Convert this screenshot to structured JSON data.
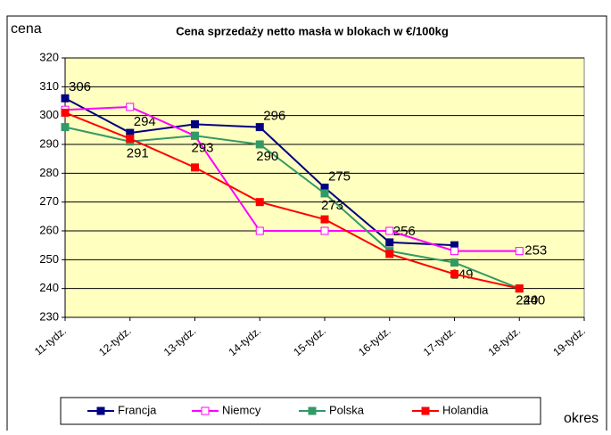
{
  "chart_data": {
    "type": "line",
    "title": "Cena sprzedaży netto masła w blokach w €/100kg",
    "y_label": "cena",
    "x_label": "okres",
    "categories": [
      "11-tydz.",
      "12-tydz.",
      "13-tydz.",
      "14-tydz.",
      "15-tydz.",
      "16-tydz.",
      "17-tydz.",
      "18-tydz.",
      "19-tydz."
    ],
    "ylim": [
      230,
      320
    ],
    "yticks": [
      230,
      240,
      250,
      260,
      270,
      280,
      290,
      300,
      310,
      320
    ],
    "grid": true,
    "legend": "bottom",
    "series": [
      {
        "name": "Francja",
        "color": "#000080",
        "values": [
          306,
          294,
          297,
          296,
          275,
          256,
          255,
          null,
          null
        ],
        "labeled": [
          0,
          1,
          3,
          4,
          5
        ]
      },
      {
        "name": "Niemcy",
        "color": "#ff00ff",
        "values": [
          302,
          303,
          293,
          260,
          260,
          260,
          253,
          253,
          null
        ],
        "labeled": [
          7
        ]
      },
      {
        "name": "Polska",
        "color": "#339966",
        "values": [
          296,
          291,
          293,
          290,
          273,
          253,
          249,
          240,
          null
        ],
        "labeled": [
          1,
          2,
          3,
          4,
          6,
          7
        ]
      },
      {
        "name": "Holandia",
        "color": "#ff0000",
        "values": [
          301,
          292,
          282,
          270,
          264,
          252,
          245,
          240,
          null
        ],
        "labeled": [
          7
        ]
      }
    ]
  }
}
